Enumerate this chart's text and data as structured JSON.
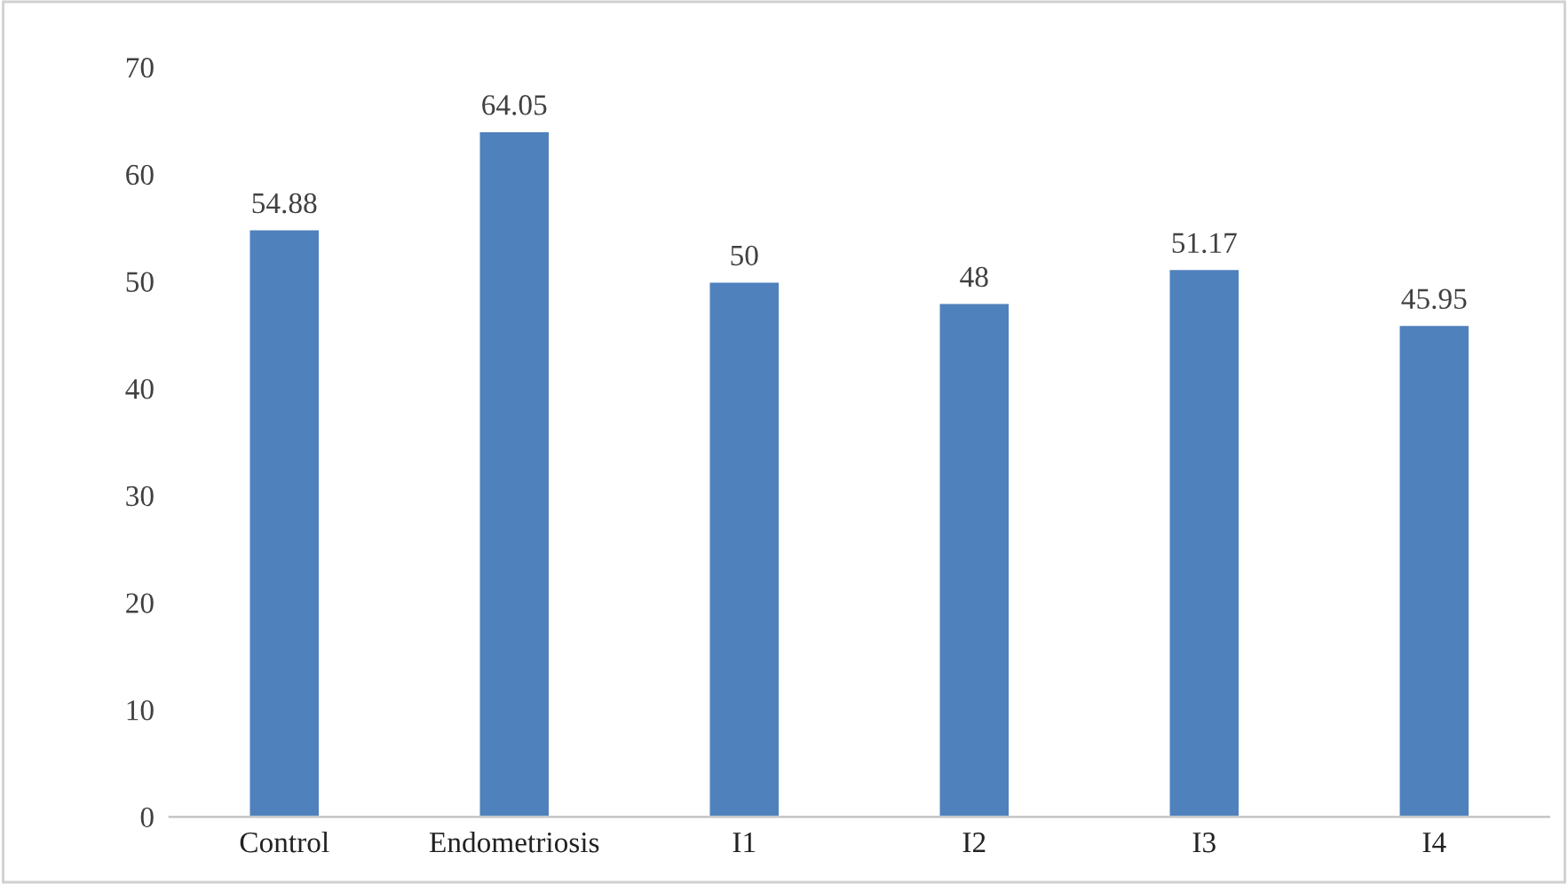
{
  "chart_data": {
    "type": "bar",
    "categories": [
      "Control",
      "Endometriosis",
      "I1",
      "I2",
      "I3",
      "I4"
    ],
    "values": [
      54.88,
      64.05,
      50,
      48,
      51.17,
      45.95
    ],
    "value_labels": [
      "54.88",
      "64.05",
      "50",
      "48",
      "51.17",
      "45.95"
    ],
    "color": "#4f81bd",
    "ylim": [
      0,
      70
    ],
    "yticks": [
      0,
      10,
      20,
      30,
      40,
      50,
      60,
      70
    ],
    "grid": false
  }
}
